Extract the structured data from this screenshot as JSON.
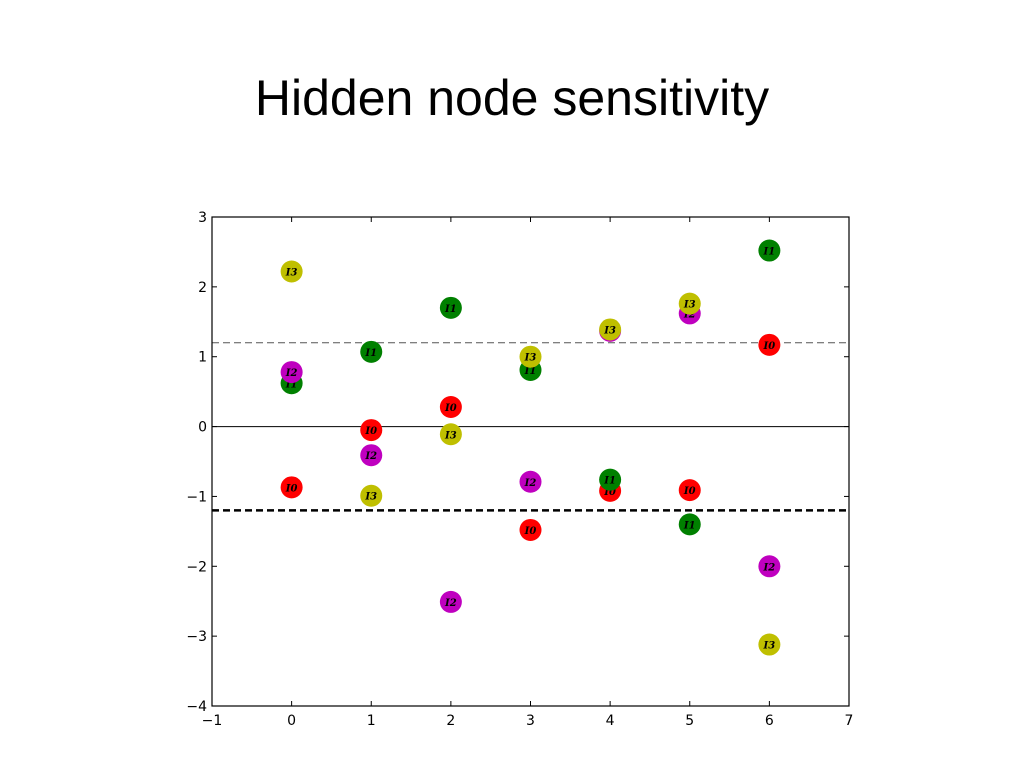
{
  "slide": {
    "title": "Hidden node sensitivity"
  },
  "chart_data": {
    "type": "scatter",
    "title": "",
    "xlabel": "",
    "ylabel": "",
    "xlim": [
      -1,
      7
    ],
    "ylim": [
      -4,
      3
    ],
    "grid": false,
    "xticks": [
      -1,
      0,
      1,
      2,
      3,
      4,
      5,
      6,
      7
    ],
    "yticks": [
      -4,
      -3,
      -2,
      -1,
      0,
      1,
      2,
      3
    ],
    "xtick_labels": [
      "−1",
      "0",
      "1",
      "2",
      "3",
      "4",
      "5",
      "6",
      "7"
    ],
    "ytick_labels": [
      "−4",
      "−3",
      "−2",
      "−1",
      "0",
      "1",
      "2",
      "3"
    ],
    "reference_lines": [
      {
        "y": 0,
        "style": "solid",
        "color": "#000000"
      },
      {
        "y": 1.2,
        "style": "dashed-thin",
        "color": "#555555"
      },
      {
        "y": -1.2,
        "style": "dashed-thick",
        "color": "#000000"
      }
    ],
    "series": [
      {
        "label": "I0",
        "color": "#ff0000",
        "points": [
          {
            "x": 0,
            "y": -0.87
          },
          {
            "x": 1,
            "y": -0.05
          },
          {
            "x": 2,
            "y": 0.28
          },
          {
            "x": 3,
            "y": -1.48
          },
          {
            "x": 4,
            "y": -0.92
          },
          {
            "x": 5,
            "y": -0.91
          },
          {
            "x": 6,
            "y": 1.17
          }
        ]
      },
      {
        "label": "I1",
        "color": "#008000",
        "points": [
          {
            "x": 0,
            "y": 0.62
          },
          {
            "x": 1,
            "y": 1.07
          },
          {
            "x": 2,
            "y": 1.7
          },
          {
            "x": 3,
            "y": 0.81
          },
          {
            "x": 4,
            "y": -0.76
          },
          {
            "x": 5,
            "y": -1.4
          },
          {
            "x": 6,
            "y": 2.52
          }
        ]
      },
      {
        "label": "I2",
        "color": "#bf00bf",
        "points": [
          {
            "x": 0,
            "y": 0.78
          },
          {
            "x": 1,
            "y": -0.41
          },
          {
            "x": 2,
            "y": -2.51
          },
          {
            "x": 3,
            "y": -0.79
          },
          {
            "x": 4,
            "y": 1.37
          },
          {
            "x": 5,
            "y": 1.62
          },
          {
            "x": 6,
            "y": -2.0
          }
        ]
      },
      {
        "label": "I3",
        "color": "#bfbf00",
        "points": [
          {
            "x": 0,
            "y": 2.22
          },
          {
            "x": 1,
            "y": -0.99
          },
          {
            "x": 2,
            "y": -0.11
          },
          {
            "x": 3,
            "y": 1.0
          },
          {
            "x": 4,
            "y": 1.39
          },
          {
            "x": 5,
            "y": 1.76
          },
          {
            "x": 6,
            "y": -3.12
          }
        ]
      }
    ]
  }
}
